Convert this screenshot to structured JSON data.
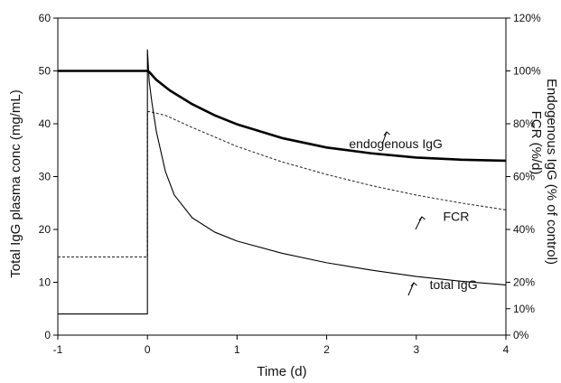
{
  "chart_data": {
    "type": "line",
    "title": "",
    "xlabel": "Time (d)",
    "ylabel": "Total IgG  plasma conc (mg/mL)",
    "y2label_line1": "Endogenous IgG  (% of control)",
    "y2label_line2": "FCR (%/d)",
    "xlim": [
      -1,
      4
    ],
    "ylim": [
      0,
      60
    ],
    "y2lim": [
      0,
      120
    ],
    "xticks": [
      "-1",
      "0",
      "1",
      "2",
      "3",
      "4"
    ],
    "yticks": [
      "0",
      "10",
      "20",
      "30",
      "40",
      "50",
      "60"
    ],
    "y2ticks": [
      "0%",
      "10%",
      "20%",
      "40%",
      "60%",
      "80%",
      "100%",
      "120%"
    ],
    "grid": false,
    "legend": "none",
    "series": [
      {
        "label": "endogenous IgG",
        "axis": "left",
        "style": "thick",
        "color": "#000000",
        "x": [
          -1,
          0,
          0.02,
          0.1,
          0.25,
          0.5,
          0.75,
          1,
          1.5,
          2,
          2.5,
          3,
          3.5,
          4
        ],
        "y": [
          50,
          50,
          49.8,
          48.3,
          46.3,
          43.7,
          41.6,
          39.9,
          37.3,
          35.5,
          34.4,
          33.6,
          33.2,
          33
        ]
      },
      {
        "label": "FCR",
        "axis": "left",
        "style": "dashed",
        "color": "#333333",
        "x": [
          -1,
          0,
          0,
          0.02,
          0.2,
          0.5,
          1,
          1.5,
          2,
          2.5,
          3,
          3.5,
          4
        ],
        "y": [
          14.8,
          14.8,
          42.3,
          42.3,
          41.6,
          39.3,
          35.7,
          32.8,
          30.4,
          28.3,
          26.5,
          25,
          23.7
        ]
      },
      {
        "label": "total IgG",
        "axis": "left",
        "style": "thin",
        "color": "#000000",
        "x": [
          -1,
          0,
          0,
          0.02,
          0.05,
          0.1,
          0.2,
          0.3,
          0.5,
          0.75,
          1,
          1.5,
          2,
          2.5,
          3,
          3.5,
          4
        ],
        "y": [
          4,
          4,
          54,
          48,
          44,
          38.5,
          31,
          26.5,
          22.2,
          19.5,
          17.8,
          15.5,
          13.7,
          12.3,
          11.1,
          10.2,
          9.5
        ]
      }
    ],
    "annotations": [
      {
        "text": "endogenous IgG",
        "x": 2.25,
        "y": 35.4
      },
      {
        "text": "FCR",
        "x": 3.3,
        "y": 21.6
      },
      {
        "text": "total IgG",
        "x": 3.15,
        "y": 8.7
      }
    ]
  }
}
